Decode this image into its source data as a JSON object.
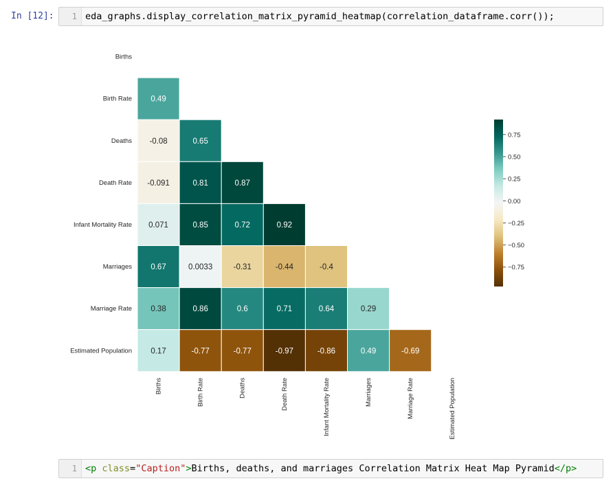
{
  "cell1": {
    "prompt": "In [12]:",
    "line_number": "1",
    "code": "eda_graphs.display_correlation_matrix_pyramid_heatmap(correlation_dataframe.corr());"
  },
  "cell2": {
    "line_number": "1",
    "tag_open_start": "<p",
    "attr_name": "class",
    "equals": "=",
    "attr_value": "\"Caption\"",
    "tag_open_end": ">",
    "text": "Births, deaths, and marriages Correlation Matrix Heat Map Pyramid",
    "tag_close": "</p>"
  },
  "chart_data": {
    "type": "heatmap",
    "title": "",
    "variables": [
      "Births",
      "Birth Rate",
      "Deaths",
      "Death Rate",
      "Infant Mortality Rate",
      "Marriages",
      "Marriage Rate",
      "Estimated Population"
    ],
    "matrix_lower_triangle": [
      [],
      [
        0.49
      ],
      [
        -0.08,
        0.65
      ],
      [
        -0.091,
        0.81,
        0.87
      ],
      [
        0.071,
        0.85,
        0.72,
        0.92
      ],
      [
        0.67,
        0.0033,
        -0.31,
        -0.44,
        -0.4
      ],
      [
        0.38,
        0.86,
        0.6,
        0.71,
        0.64,
        0.29
      ],
      [
        0.17,
        -0.77,
        -0.77,
        -0.97,
        -0.86,
        0.49,
        -0.69
      ]
    ],
    "cell_labels": [
      [],
      [
        "0.49"
      ],
      [
        "-0.08",
        "0.65"
      ],
      [
        "-0.091",
        "0.81",
        "0.87"
      ],
      [
        "0.071",
        "0.85",
        "0.72",
        "0.92"
      ],
      [
        "0.67",
        "0.0033",
        "-0.31",
        "-0.44",
        "-0.4"
      ],
      [
        "0.38",
        "0.86",
        "0.6",
        "0.71",
        "0.64",
        "0.29"
      ],
      [
        "0.17",
        "-0.77",
        "-0.77",
        "-0.97",
        "-0.86",
        "0.49",
        "-0.69"
      ]
    ],
    "colormap": "BrBG",
    "color_range": [
      -0.97,
      0.92
    ],
    "colorbar_ticks": [
      0.75,
      0.5,
      0.25,
      0.0,
      -0.25,
      -0.5,
      -0.75
    ],
    "colorbar_tick_labels": [
      "0.75",
      "0.50",
      "0.25",
      "0.00",
      "−0.25",
      "−0.50",
      "−0.75"
    ],
    "colorbar_position": "right",
    "grid": false
  }
}
